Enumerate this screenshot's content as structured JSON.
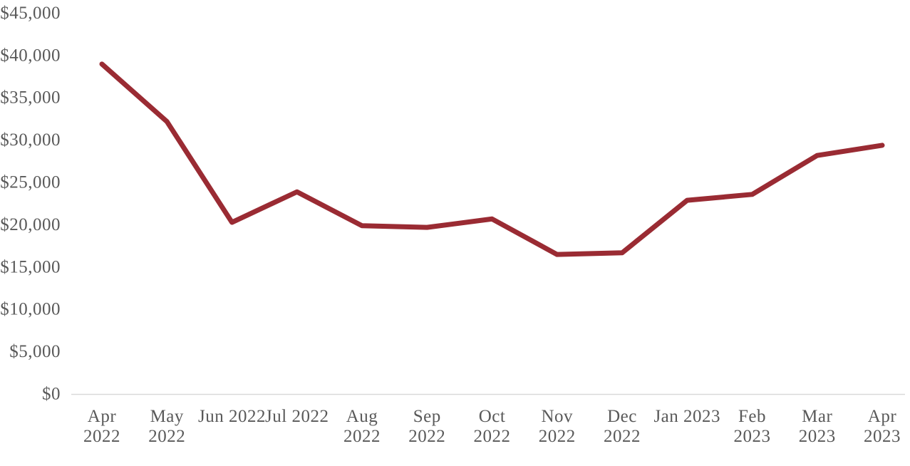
{
  "chart_data": {
    "type": "line",
    "title": "",
    "xlabel": "",
    "ylabel": "",
    "legend": "none",
    "grid": "off",
    "categories": [
      "Apr 2022",
      "May 2022",
      "Jun 2022",
      "Jul 2022",
      "Aug 2022",
      "Sep 2022",
      "Oct 2022",
      "Nov 2022",
      "Dec 2022",
      "Jan 2023",
      "Feb 2023",
      "Mar 2023",
      "Apr 2023"
    ],
    "x_tick_lines": [
      [
        "Apr",
        "2022"
      ],
      [
        "May",
        "2022"
      ],
      [
        "Jun 2022"
      ],
      [
        "Jul 2022"
      ],
      [
        "Aug",
        "2022"
      ],
      [
        "Sep",
        "2022"
      ],
      [
        "Oct",
        "2022"
      ],
      [
        "Nov",
        "2022"
      ],
      [
        "Dec",
        "2022"
      ],
      [
        "Jan 2023"
      ],
      [
        "Feb",
        "2023"
      ],
      [
        "Mar",
        "2023"
      ],
      [
        "Apr",
        "2023"
      ]
    ],
    "values": [
      38900,
      32100,
      20200,
      23800,
      19800,
      19600,
      20600,
      16400,
      16600,
      22800,
      23500,
      28100,
      29300
    ],
    "y_tick_labels": [
      "$0",
      "$5,000",
      "$10,000",
      "$15,000",
      "$20,000",
      "$25,000",
      "$30,000",
      "$35,000",
      "$40,000",
      "$45,000"
    ],
    "y_tick_values": [
      0,
      5000,
      10000,
      15000,
      20000,
      25000,
      30000,
      35000,
      40000,
      45000
    ],
    "ylim": [
      0,
      45000
    ],
    "colors": {
      "line": "#9A2B33",
      "axis_line": "#D9D9D9",
      "labels": "#595959",
      "background": "#FFFFFF"
    }
  }
}
